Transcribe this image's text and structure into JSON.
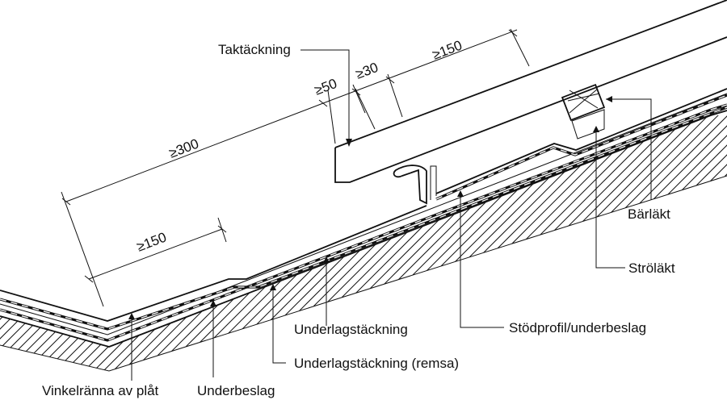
{
  "labels": {
    "taktackning": "Taktäckning",
    "barlakt": "Bärläkt",
    "strolakt": "Ströläkt",
    "stodprofil": "Stödprofil/underbeslag",
    "underlagstackning": "Underlagstäckning",
    "underlagstackning_remsa": "Underlagstäckning (remsa)",
    "vinkelranna": "Vinkelränna av plåt",
    "underbeslag": "Underbeslag"
  },
  "dimensions": {
    "d300": "≥300",
    "d150_lower": "≥150",
    "d50": "≥50",
    "d30": "≥30",
    "d150_upper": "≥150"
  }
}
